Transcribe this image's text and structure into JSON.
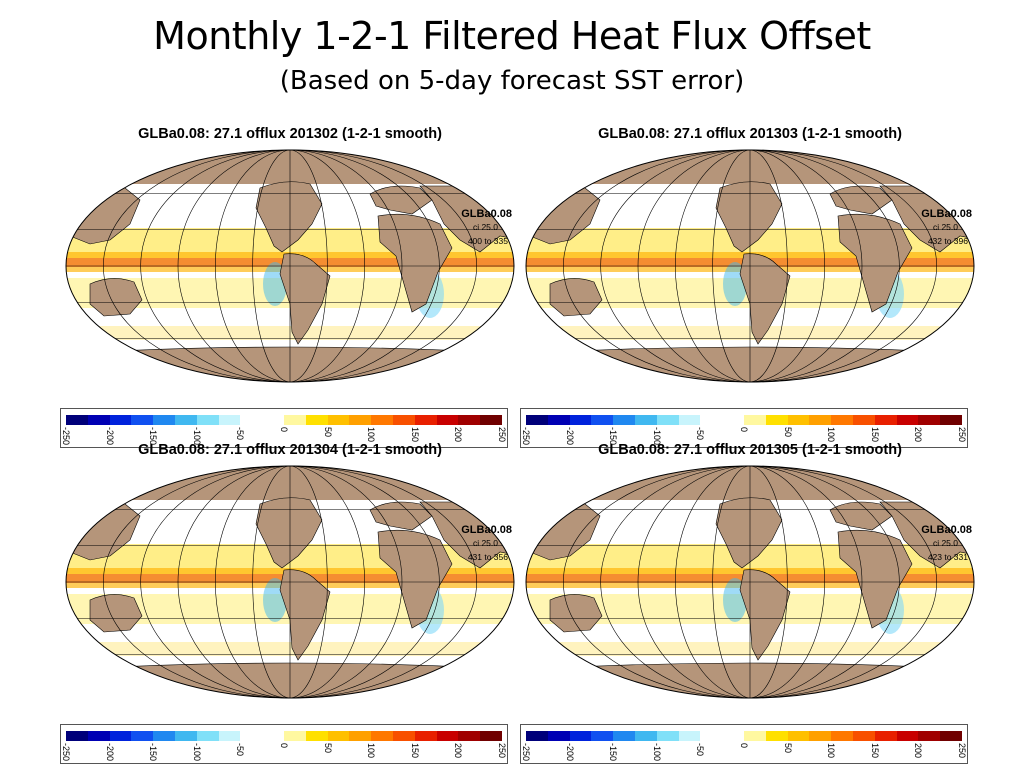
{
  "title": "Monthly 1-2-1 Filtered Heat Flux Offset",
  "subtitle": "(Based on 5-day forecast SST error)",
  "panels": [
    {
      "heading": "GLBa0.08: 27.1 offlux 201302 (1-2-1 smooth)",
      "model": "GLBa0.08",
      "ci": "ci 25.0",
      "range": "400 to 335",
      "month": "201302"
    },
    {
      "heading": "GLBa0.08: 27.1 offlux 201303 (1-2-1 smooth)",
      "model": "GLBa0.08",
      "ci": "ci 25.0",
      "range": "432 to 396",
      "month": "201303"
    },
    {
      "heading": "GLBa0.08: 27.1 offlux 201304 (1-2-1 smooth)",
      "model": "GLBa0.08",
      "ci": "ci 25.0",
      "range": "431 to 356",
      "month": "201304"
    },
    {
      "heading": "GLBa0.08: 27.1 offlux 201305 (1-2-1 smooth)",
      "model": "GLBa0.08",
      "ci": "ci 25.0",
      "range": "423 to 331",
      "month": "201305"
    }
  ],
  "colorbar": {
    "ticks": [
      "-250",
      "-200",
      "-150",
      "-100",
      "-50",
      "0",
      "50",
      "100",
      "150",
      "200",
      "250"
    ],
    "colors": [
      "#00007a",
      "#0000b4",
      "#0022dc",
      "#1050f0",
      "#2088f0",
      "#40b8f0",
      "#80e0f8",
      "#c8f4fc",
      "#ffffff",
      "#ffffff",
      "#fff8a0",
      "#ffe000",
      "#ffc000",
      "#ffa000",
      "#ff7800",
      "#f85000",
      "#e82000",
      "#c80000",
      "#a00000",
      "#700000"
    ]
  },
  "colors": {
    "land": "#b5957a",
    "ocean": "#ffffff"
  }
}
